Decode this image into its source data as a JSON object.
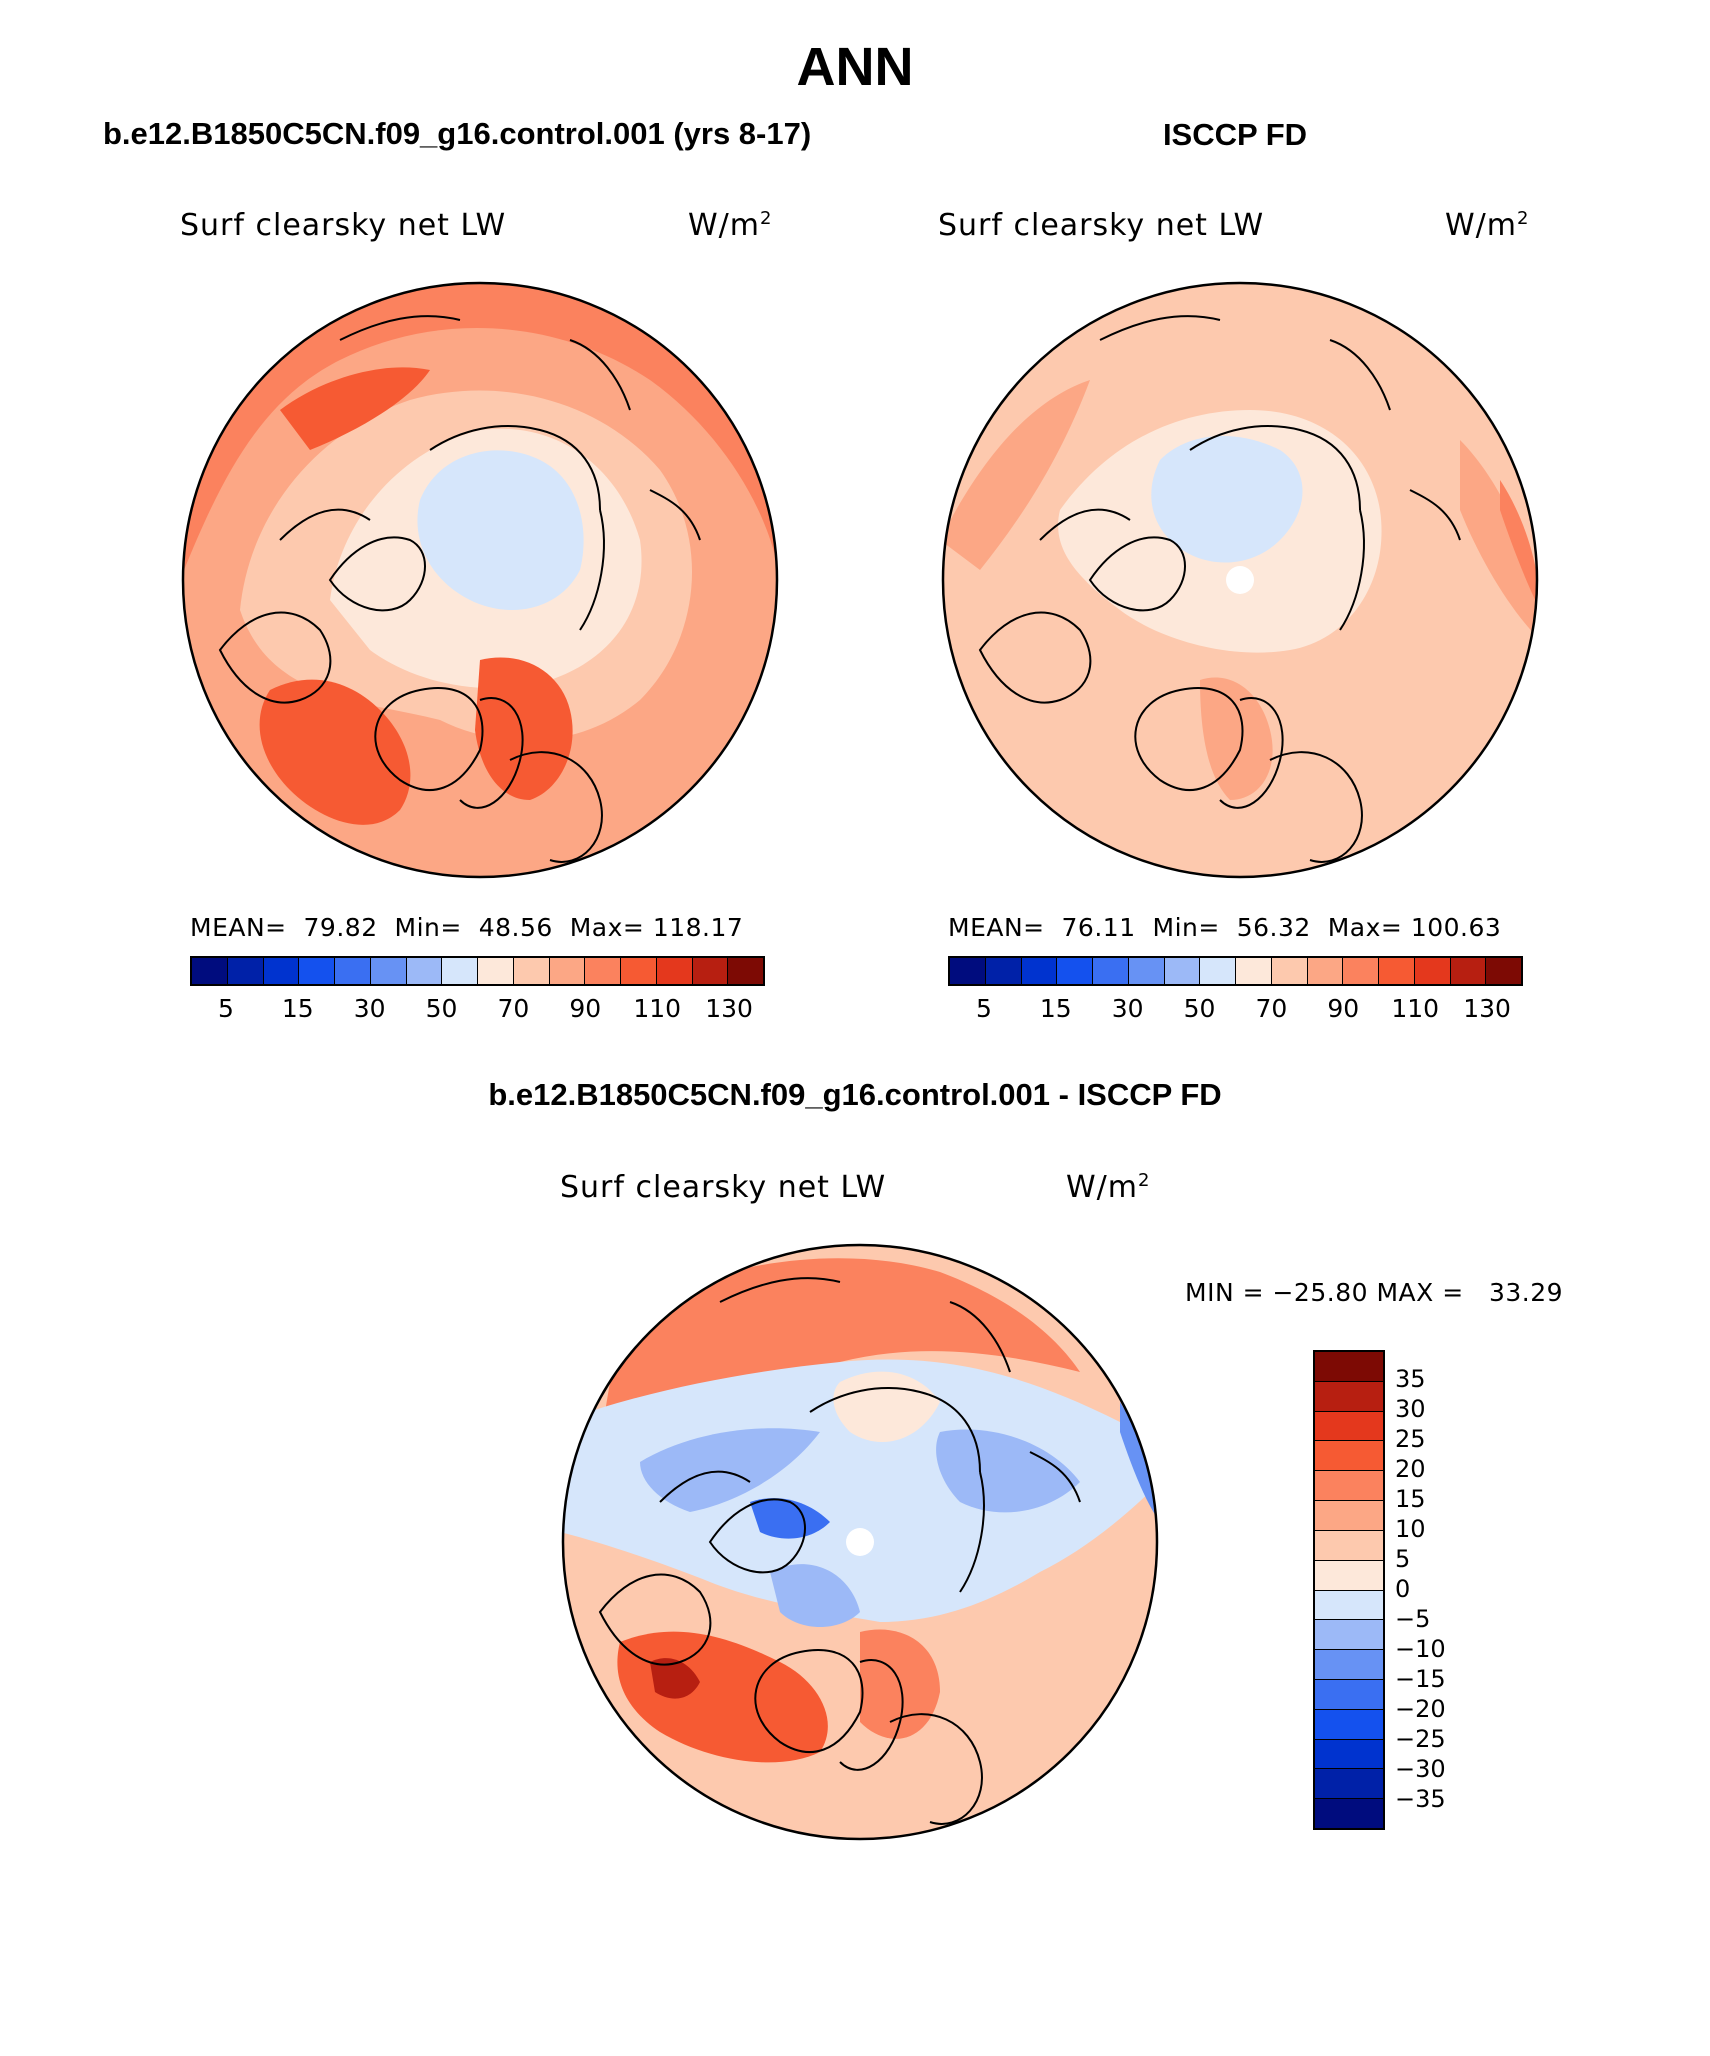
{
  "title": "ANN",
  "panels": {
    "model": {
      "case": "b.e12.B1850C5CN.f09_g16.control.001 (yrs 8-17)",
      "variable": "Surf clearsky net LW",
      "units": "W/m",
      "units_sup": "2",
      "mean_label": "MEAN=",
      "mean": "79.82",
      "min_label": "Min=",
      "min": "48.56",
      "max_label": "Max=",
      "max": "118.17"
    },
    "obs": {
      "case": "ISCCP FD",
      "variable": "Surf clearsky net LW",
      "units": "W/m",
      "units_sup": "2",
      "mean_label": "MEAN=",
      "mean": "76.11",
      "min_label": "Min=",
      "min": "56.32",
      "max_label": "Max=",
      "max": "100.63"
    },
    "diff": {
      "case": "b.e12.B1850C5CN.f09_g16.control.001 - ISCCP FD",
      "variable": "Surf clearsky net LW",
      "units": "W/m",
      "units_sup": "2",
      "minmax": "MIN = −25.80 MAX =   33.29"
    }
  },
  "colorbar_main": {
    "colors": [
      "#000c7e",
      "#0021a8",
      "#0033cf",
      "#1451ee",
      "#3a6ff2",
      "#6792f4",
      "#9cb9f7",
      "#d6e6fb",
      "#fde8da",
      "#fdc9ae",
      "#fca785",
      "#fb825e",
      "#f65a33",
      "#e4381d",
      "#b71f11",
      "#7d0a04"
    ],
    "labels": [
      "5",
      "15",
      "30",
      "50",
      "70",
      "90",
      "110",
      "130"
    ]
  },
  "colorbar_diff": {
    "colors": [
      "#7d0a04",
      "#b71f11",
      "#e4381d",
      "#f65a33",
      "#fb825e",
      "#fca785",
      "#fdc9ae",
      "#fde8da",
      "#d6e6fb",
      "#9cb9f7",
      "#6792f4",
      "#3a6ff2",
      "#1451ee",
      "#0033cf",
      "#0021a8",
      "#000c7e"
    ],
    "labels": [
      "35",
      "30",
      "25",
      "20",
      "15",
      "10",
      "5",
      "0",
      "−5",
      "−10",
      "−15",
      "−20",
      "−25",
      "−30",
      "−35"
    ]
  }
}
